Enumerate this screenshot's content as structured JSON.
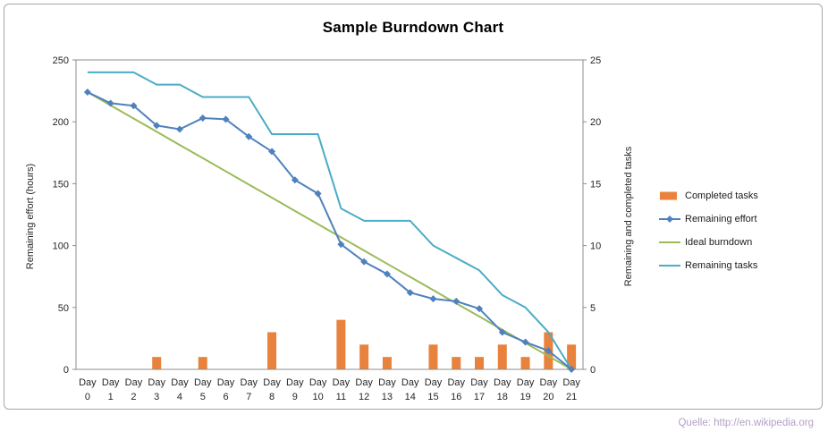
{
  "title": "Sample Burndown Chart",
  "source_credit": "Quelle: http://en.wikipedia.org",
  "left_axis": {
    "label": "Remaining effort (hours)",
    "min": 0,
    "max": 250,
    "ticks": [
      0,
      50,
      100,
      150,
      200,
      250
    ]
  },
  "right_axis": {
    "label": "Remaining and completed tasks",
    "min": 0,
    "max": 25,
    "ticks": [
      0,
      5,
      10,
      15,
      20,
      25
    ]
  },
  "legend": [
    {
      "label": "Completed tasks",
      "swatch": "bar",
      "color": "#e8823c"
    },
    {
      "label": "Remaining effort",
      "swatch": "line-marker",
      "color": "#4f81bd"
    },
    {
      "label": "Ideal burndown",
      "swatch": "line",
      "color": "#9bbb59"
    },
    {
      "label": "Remaining tasks",
      "swatch": "line",
      "color": "#4bacc6"
    }
  ],
  "colors": {
    "completed_tasks": "#e8823c",
    "remaining_effort": "#4f81bd",
    "ideal_burndown": "#9bbb59",
    "remaining_tasks": "#4bacc6",
    "plot_border": "#8c8c8c",
    "axis_text": "#262626"
  },
  "chart_data": {
    "type": "combo",
    "title": "Sample Burndown Chart",
    "categories": [
      "Day 0",
      "Day 1",
      "Day 2",
      "Day 3",
      "Day 4",
      "Day 5",
      "Day 6",
      "Day 7",
      "Day 8",
      "Day 9",
      "Day 10",
      "Day 11",
      "Day 12",
      "Day 13",
      "Day 14",
      "Day 15",
      "Day 16",
      "Day 17",
      "Day 18",
      "Day 19",
      "Day 20",
      "Day 21"
    ],
    "left_ylabel": "Remaining effort (hours)",
    "right_ylabel": "Remaining and completed tasks",
    "left_ylim": [
      0,
      250
    ],
    "right_ylim": [
      0,
      25
    ],
    "grid": false,
    "legend_position": "right",
    "series": [
      {
        "name": "Completed tasks",
        "type": "bar",
        "axis": "right",
        "color": "#e8823c",
        "values": [
          0,
          0,
          0,
          1,
          0,
          1,
          0,
          0,
          3,
          0,
          0,
          4,
          2,
          1,
          0,
          2,
          1,
          1,
          2,
          1,
          3,
          2
        ]
      },
      {
        "name": "Remaining effort",
        "type": "line",
        "marker": "diamond",
        "axis": "left",
        "color": "#4f81bd",
        "values": [
          224,
          215,
          213,
          197,
          194,
          203,
          202,
          188,
          176,
          153,
          142,
          101,
          87,
          77,
          62,
          57,
          55,
          49,
          30,
          22,
          15,
          0
        ]
      },
      {
        "name": "Ideal burndown",
        "type": "line",
        "axis": "left",
        "color": "#9bbb59",
        "values": [
          224,
          213.3,
          202.7,
          192,
          181.3,
          170.7,
          160,
          149.3,
          138.7,
          128,
          117.3,
          106.7,
          96,
          85.3,
          74.7,
          64,
          53.3,
          42.7,
          32,
          21.3,
          10.7,
          0
        ]
      },
      {
        "name": "Remaining tasks",
        "type": "line",
        "axis": "right",
        "color": "#4bacc6",
        "values": [
          24,
          24,
          24,
          23,
          23,
          22,
          22,
          22,
          19,
          19,
          19,
          13,
          12,
          12,
          12,
          10,
          9,
          8,
          6,
          5,
          3,
          0
        ]
      }
    ]
  }
}
